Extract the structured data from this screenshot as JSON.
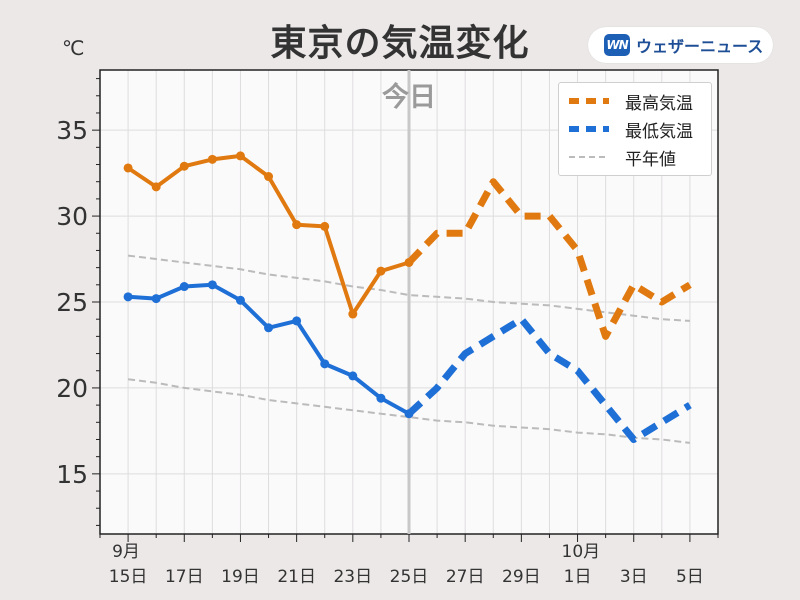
{
  "header": {
    "title": "東京の気温変化",
    "brand_logo": "WN",
    "brand_name": "ウェザーニュース"
  },
  "chart_data": {
    "type": "line",
    "title": "東京の気温変化",
    "unit_label": "℃",
    "today_label": "今日",
    "today_x": 10,
    "x_tick_labels": [
      {
        "x": 0,
        "top": "9月",
        "bottom": "15日"
      },
      {
        "x": 2,
        "top": "",
        "bottom": "17日"
      },
      {
        "x": 4,
        "top": "",
        "bottom": "19日"
      },
      {
        "x": 6,
        "top": "",
        "bottom": "21日"
      },
      {
        "x": 8,
        "top": "",
        "bottom": "23日"
      },
      {
        "x": 10,
        "top": "",
        "bottom": "25日"
      },
      {
        "x": 12,
        "top": "",
        "bottom": "27日"
      },
      {
        "x": 14,
        "top": "",
        "bottom": "29日"
      },
      {
        "x": 16,
        "top": "10月",
        "bottom": "1日"
      },
      {
        "x": 18,
        "top": "",
        "bottom": "3日"
      },
      {
        "x": 20,
        "top": "",
        "bottom": "5日"
      }
    ],
    "y_ticks": [
      15,
      20,
      25,
      30,
      35
    ],
    "xlim": [
      -1,
      21
    ],
    "ylim": [
      11.5,
      38.5
    ],
    "grid": true,
    "legend_position": "top-right",
    "series": [
      {
        "name": "最高気温",
        "color": "#e07a10",
        "observed": [
          32.8,
          31.7,
          32.9,
          33.3,
          33.5,
          32.3,
          29.5,
          29.4,
          24.3,
          26.8,
          27.3
        ],
        "forecast": [
          27.3,
          29.0,
          29.0,
          32.0,
          30.0,
          30.0,
          28.0,
          23.0,
          26.0,
          25.0,
          26.0
        ]
      },
      {
        "name": "最低気温",
        "color": "#1e6fd6",
        "observed": [
          25.3,
          25.2,
          25.9,
          26.0,
          25.1,
          23.5,
          23.9,
          21.4,
          20.7,
          19.4,
          18.5
        ],
        "forecast": [
          18.5,
          20.0,
          22.0,
          23.0,
          24.0,
          22.0,
          21.0,
          19.0,
          17.0,
          18.0,
          19.0
        ]
      },
      {
        "name": "平年値",
        "color": "#bbbbbb",
        "normal_high": [
          27.7,
          27.5,
          27.3,
          27.1,
          26.9,
          26.6,
          26.4,
          26.2,
          25.9,
          25.7,
          25.4,
          25.3,
          25.2,
          25.0,
          24.9,
          24.8,
          24.6,
          24.4,
          24.2,
          24.0,
          23.9
        ],
        "normal_low": [
          20.5,
          20.3,
          20.0,
          19.8,
          19.6,
          19.3,
          19.1,
          18.9,
          18.7,
          18.5,
          18.3,
          18.1,
          18.0,
          17.8,
          17.7,
          17.6,
          17.4,
          17.3,
          17.1,
          17.0,
          16.8
        ]
      }
    ]
  }
}
